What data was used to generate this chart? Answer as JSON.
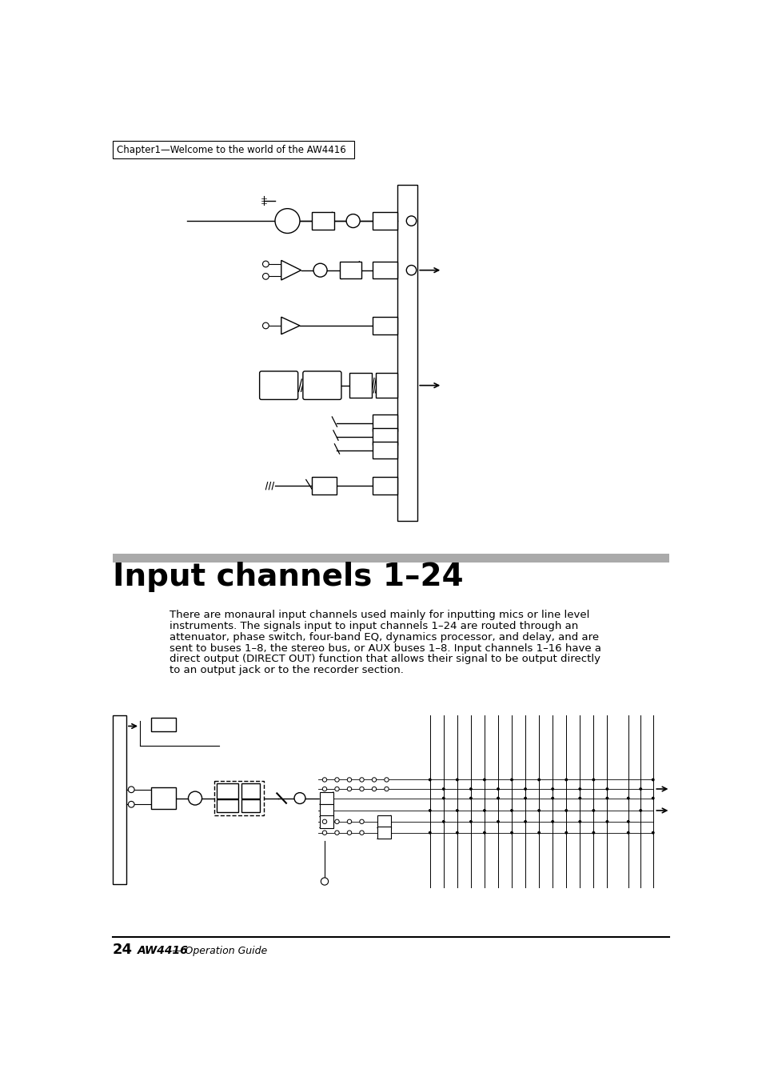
{
  "page_number": "24",
  "brand_text": "AW4416",
  "brand_suffix": " — Operation Guide",
  "chapter_header": "Chapter1—Welcome to the world of the AW4416",
  "section_title": "Input channels 1–24",
  "body_text_lines": [
    "There are monaural input channels used mainly for inputting mics or line level",
    "instruments. The signals input to input channels 1–24 are routed through an",
    "attenuator, phase switch, four-band EQ, dynamics processor, and delay, and are",
    "sent to buses 1–8, the stereo bus, or AUX buses 1–8. Input channels 1–16 have a",
    "direct output (DIRECT OUT) function that allows their signal to be output directly",
    "to an output jack or to the recorder section."
  ],
  "bg_color": "#ffffff",
  "text_color": "#000000",
  "gray_bar_color": "#999999",
  "header_border_color": "#000000",
  "footer_line_color": "#000000",
  "section_bar_color": "#aaaaaa"
}
